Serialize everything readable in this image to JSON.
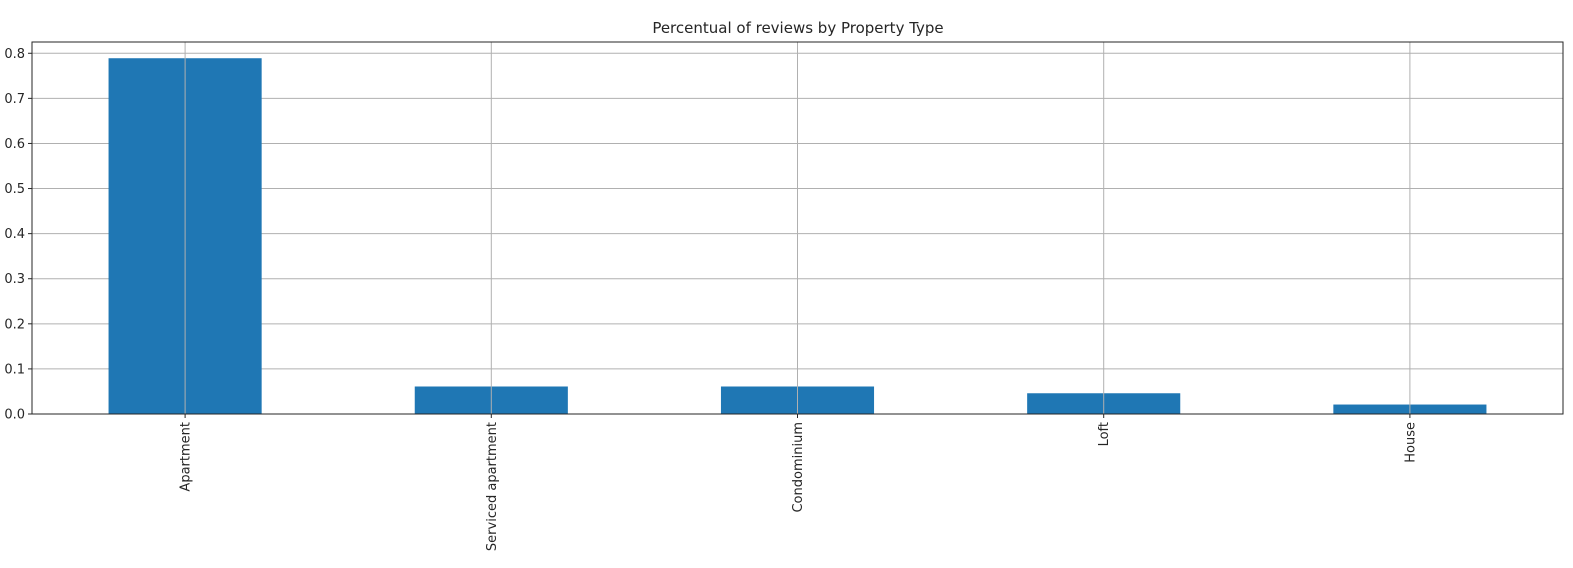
{
  "chart_data": {
    "type": "bar",
    "title": "Percentual of reviews by Property Type",
    "xlabel": "",
    "ylabel": "",
    "categories": [
      "Apartment",
      "Serviced apartment",
      "Condominium",
      "Loft",
      "House"
    ],
    "values": [
      0.789,
      0.061,
      0.061,
      0.046,
      0.021
    ],
    "ylim": [
      0.0,
      0.825
    ],
    "yticks": [
      "0.0",
      "0.1",
      "0.2",
      "0.3",
      "0.4",
      "0.5",
      "0.6",
      "0.7",
      "0.8"
    ],
    "grid": true,
    "legend": "none",
    "bar_color": "#1f77b4"
  }
}
